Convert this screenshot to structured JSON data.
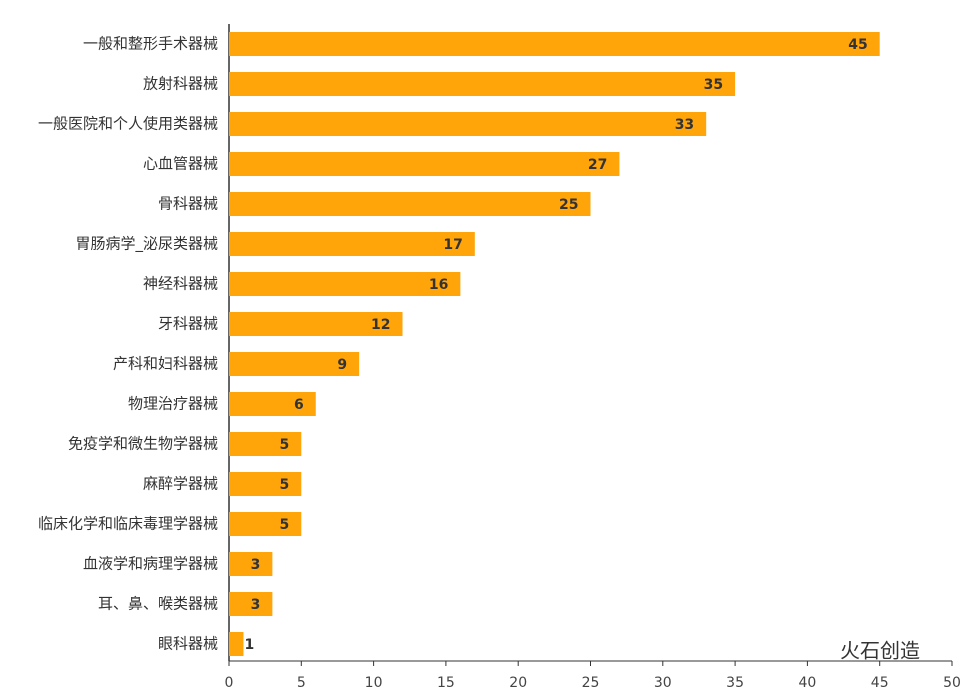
{
  "chart_data": {
    "type": "bar",
    "orientation": "horizontal",
    "categories": [
      "一般和整形手术器械",
      "放射科器械",
      "一般医院和个人使用类器械",
      "心血管器械",
      "骨科器械",
      "胃肠病学_泌尿类器械",
      "神经科器械",
      "牙科器械",
      "产科和妇科器械",
      "物理治疗器械",
      "免疫学和微生物学器械",
      "麻醉学器械",
      "临床化学和临床毒理学器械",
      "血液学和病理学器械",
      "耳、鼻、喉类器械",
      "眼科器械"
    ],
    "values": [
      45,
      35,
      33,
      27,
      25,
      17,
      16,
      12,
      9,
      6,
      5,
      5,
      5,
      3,
      3,
      1
    ],
    "color": "#ffa50a",
    "xlim": [
      0,
      50
    ],
    "xticks": [
      0,
      5,
      10,
      15,
      20,
      25,
      30,
      35,
      40,
      45,
      50
    ],
    "watermark": "火石创造"
  }
}
